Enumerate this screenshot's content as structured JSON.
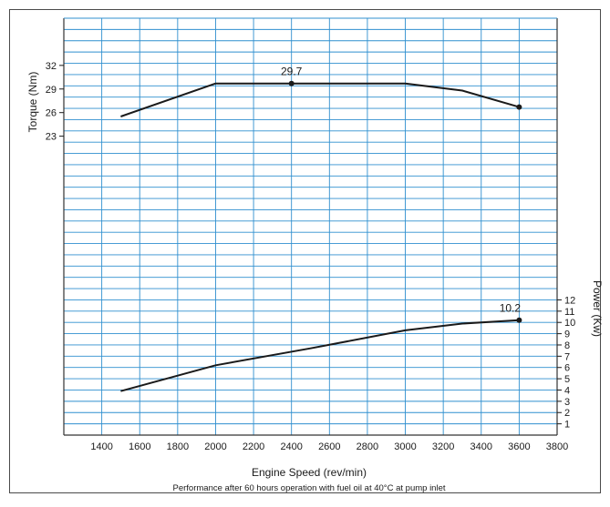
{
  "chart_data": {
    "type": "line",
    "title": "",
    "xlabel": "Engine Speed (rev/min)",
    "note": "Performance after 60 hours operation with fuel oil at 40°C at pump inlet",
    "x_ticks": [
      1400,
      1600,
      1800,
      2000,
      2200,
      2400,
      2600,
      2800,
      3000,
      3200,
      3400,
      3600,
      3800
    ],
    "xlim": [
      1200,
      3800
    ],
    "grid": true,
    "left_axis": {
      "label": "Torque (Nm)",
      "ticks": [
        23,
        26,
        29,
        32
      ],
      "ylim": [
        -15,
        38
      ]
    },
    "right_axis": {
      "label": "Power (Kw)",
      "ticks": [
        1,
        2,
        3,
        4,
        5,
        6,
        7,
        8,
        9,
        10,
        11,
        12
      ],
      "ylim": [
        0,
        37
      ]
    },
    "series": [
      {
        "axis": "left",
        "x": [
          1500,
          2000,
          2400,
          3000,
          3300,
          3600
        ],
        "y": [
          25.5,
          29.7,
          29.7,
          29.7,
          28.8,
          26.7
        ],
        "marker_indices": [
          2,
          5
        ],
        "annotation": {
          "index": 2,
          "text": "29.7"
        }
      },
      {
        "axis": "right",
        "x": [
          1500,
          2000,
          2500,
          3000,
          3300,
          3600
        ],
        "y": [
          3.9,
          6.2,
          7.7,
          9.3,
          9.9,
          10.2
        ],
        "marker_indices": [
          5
        ],
        "annotation": {
          "index": 5,
          "text": "10.2"
        }
      }
    ]
  }
}
